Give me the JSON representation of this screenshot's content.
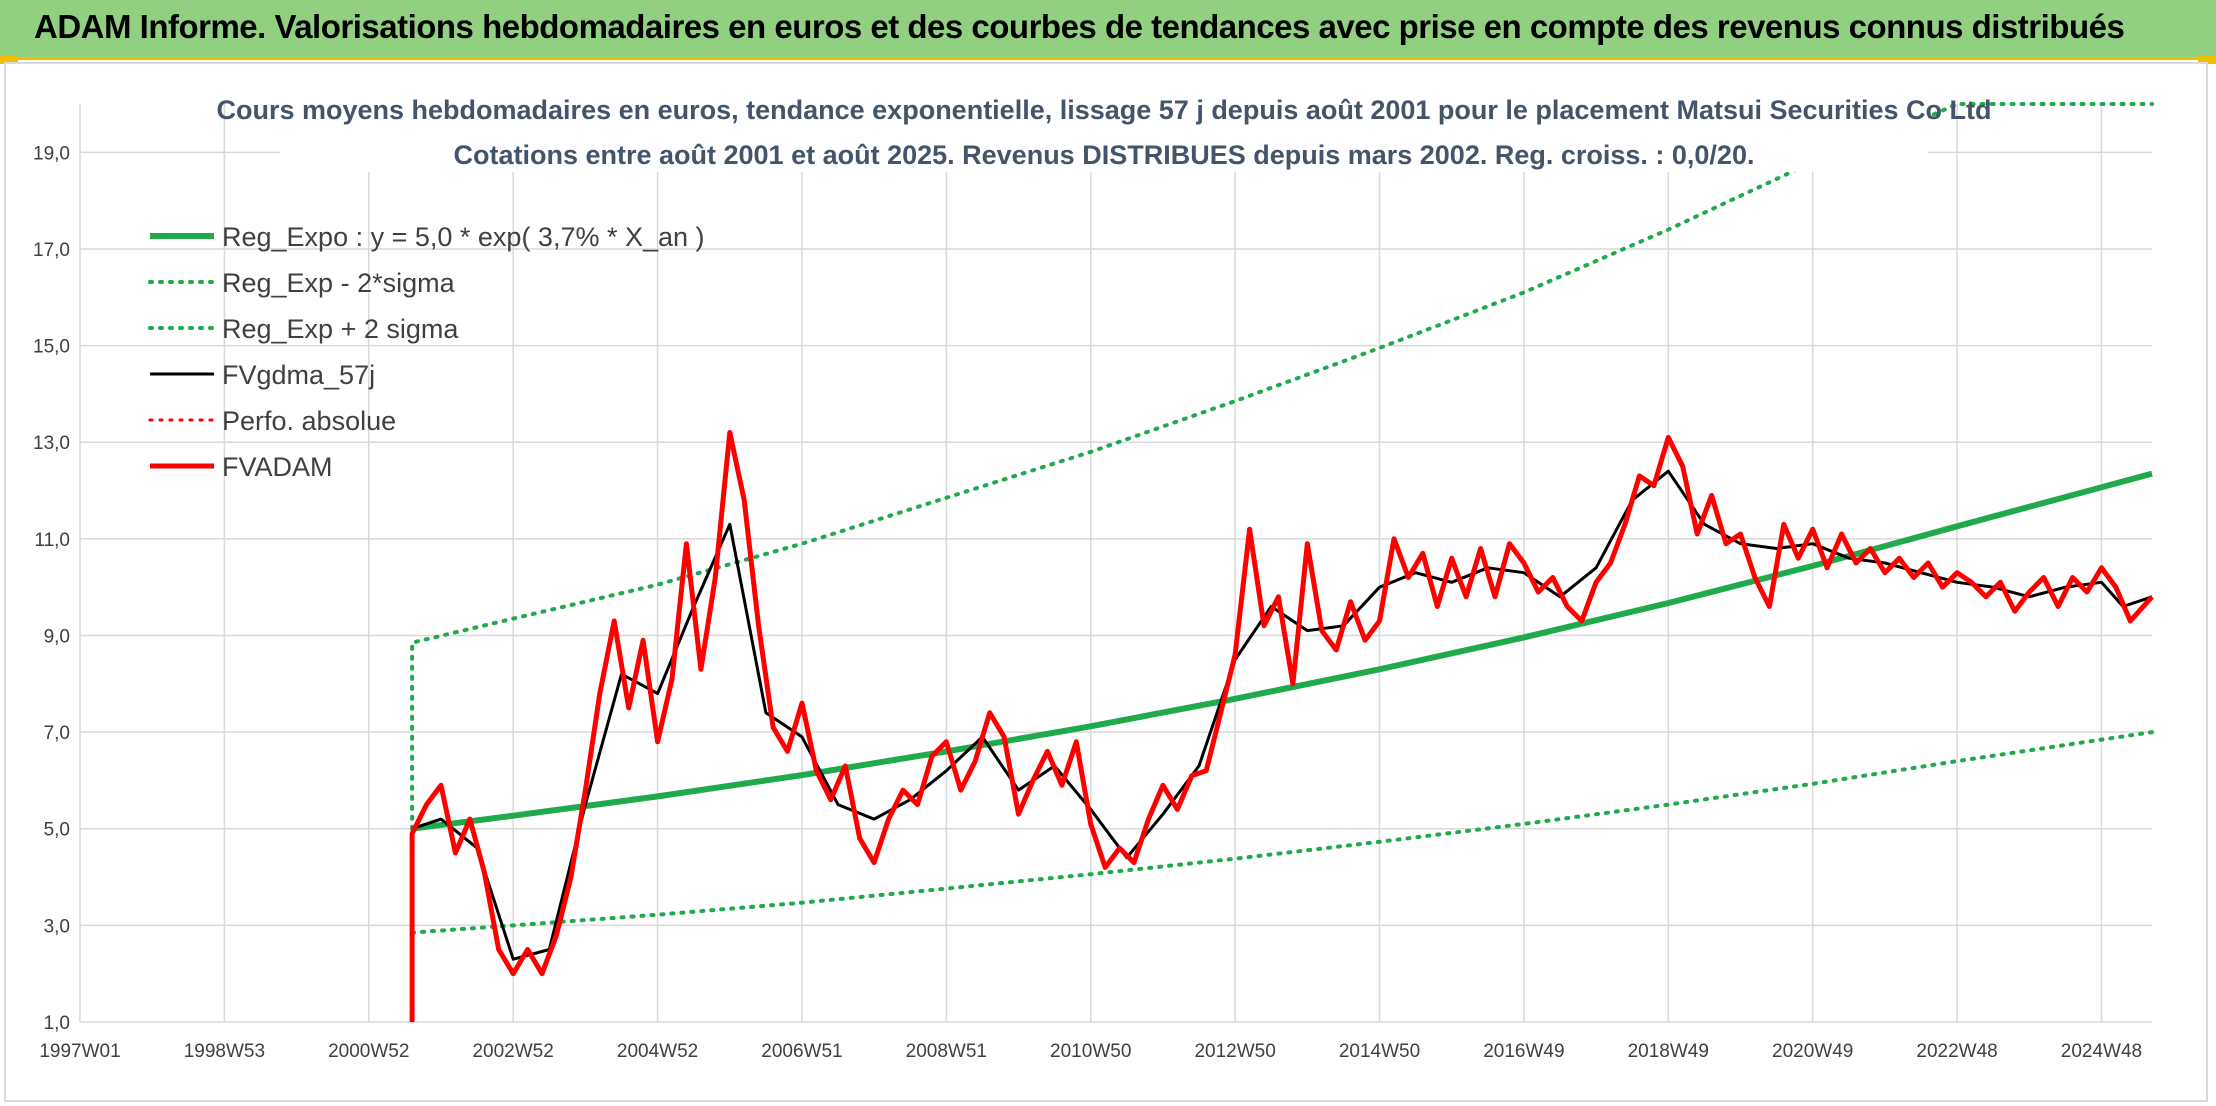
{
  "banner": {
    "title": "ADAM Informe. Valorisations hebdomadaires en euros et des courbes de tendances avec prise en compte des revenus connus distribués"
  },
  "colors": {
    "banner_bg": "#92d081",
    "reg_green": "#1faa4b",
    "red": "#ff0000",
    "black": "#000000",
    "title": "#44546a"
  },
  "chart_data": {
    "type": "line",
    "title": "Cours moyens hebdomadaires en euros, tendance exponentielle, lissage 57 j depuis août 2001 pour le placement Matsui Securities Co Ltd",
    "subtitle": "Cotations entre août 2001 et août 2025. Revenus DISTRIBUES depuis mars 2002. Reg. croiss. : 0,0/20.",
    "xlabel": "",
    "ylabel": "",
    "xlim": [
      1997.0,
      2025.7
    ],
    "ylim": [
      1.0,
      20.0
    ],
    "grid": true,
    "legend_position": "top-left",
    "x_ticks": [
      {
        "label": "1997W01",
        "x": 1997.0
      },
      {
        "label": "1998W53",
        "x": 1999.0
      },
      {
        "label": "2000W52",
        "x": 2001.0
      },
      {
        "label": "2002W52",
        "x": 2003.0
      },
      {
        "label": "2004W52",
        "x": 2005.0
      },
      {
        "label": "2006W51",
        "x": 2007.0
      },
      {
        "label": "2008W51",
        "x": 2009.0
      },
      {
        "label": "2010W50",
        "x": 2011.0
      },
      {
        "label": "2012W50",
        "x": 2013.0
      },
      {
        "label": "2014W50",
        "x": 2015.0
      },
      {
        "label": "2016W49",
        "x": 2017.0
      },
      {
        "label": "2018W49",
        "x": 2019.0
      },
      {
        "label": "2020W49",
        "x": 2021.0
      },
      {
        "label": "2022W48",
        "x": 2023.0
      },
      {
        "label": "2024W48",
        "x": 2025.0
      }
    ],
    "y_ticks": [
      {
        "label": "1,0",
        "y": 1.0
      },
      {
        "label": "3,0",
        "y": 3.0
      },
      {
        "label": "5,0",
        "y": 5.0
      },
      {
        "label": "7,0",
        "y": 7.0
      },
      {
        "label": "9,0",
        "y": 9.0
      },
      {
        "label": "11,0",
        "y": 11.0
      },
      {
        "label": "13,0",
        "y": 13.0
      },
      {
        "label": "15,0",
        "y": 15.0
      },
      {
        "label": "17,0",
        "y": 17.0
      },
      {
        "label": "19,0",
        "y": 19.0
      }
    ],
    "series": [
      {
        "name": "Reg_Expo : y = 5,0 * exp( 3,7% *  X_an )",
        "color": "#1faa4b",
        "style": "solid",
        "width": 6,
        "points": [
          [
            2001.6,
            5.0
          ],
          [
            2003.0,
            5.27
          ],
          [
            2005.0,
            5.67
          ],
          [
            2007.0,
            6.11
          ],
          [
            2009.0,
            6.6
          ],
          [
            2011.0,
            7.12
          ],
          [
            2013.0,
            7.69
          ],
          [
            2015.0,
            8.3
          ],
          [
            2017.0,
            8.96
          ],
          [
            2019.0,
            9.67
          ],
          [
            2021.0,
            10.44
          ],
          [
            2023.0,
            11.26
          ],
          [
            2025.7,
            12.35
          ]
        ]
      },
      {
        "name": "Reg_Exp - 2*sigma",
        "color": "#1faa4b",
        "style": "dotted",
        "width": 4,
        "points": [
          [
            2001.6,
            2.85
          ],
          [
            2003.0,
            3.0
          ],
          [
            2005.0,
            3.22
          ],
          [
            2007.0,
            3.47
          ],
          [
            2009.0,
            3.76
          ],
          [
            2011.0,
            4.06
          ],
          [
            2013.0,
            4.38
          ],
          [
            2015.0,
            4.73
          ],
          [
            2017.0,
            5.1
          ],
          [
            2019.0,
            5.5
          ],
          [
            2021.0,
            5.93
          ],
          [
            2023.0,
            6.4
          ],
          [
            2025.7,
            7.0
          ]
        ]
      },
      {
        "name": "Reg_Exp + 2 sigma",
        "color": "#1faa4b",
        "style": "dotted",
        "width": 4,
        "points": [
          [
            2001.6,
            5.0
          ],
          [
            2001.6,
            8.85
          ],
          [
            2003.0,
            9.35
          ],
          [
            2005.0,
            10.05
          ],
          [
            2007.0,
            10.9
          ],
          [
            2009.0,
            11.85
          ],
          [
            2011.0,
            12.8
          ],
          [
            2013.0,
            13.85
          ],
          [
            2015.0,
            14.95
          ],
          [
            2017.0,
            16.1
          ],
          [
            2019.0,
            17.4
          ],
          [
            2021.0,
            18.8
          ],
          [
            2022.4,
            19.6
          ],
          [
            2023.0,
            20.0
          ],
          [
            2025.7,
            20.0
          ]
        ]
      },
      {
        "name": "FVgdma_57j",
        "color": "#000000",
        "style": "solid",
        "width": 3,
        "points": [
          [
            2001.6,
            5.0
          ],
          [
            2002.0,
            5.2
          ],
          [
            2002.5,
            4.6
          ],
          [
            2003.0,
            2.3
          ],
          [
            2003.5,
            2.5
          ],
          [
            2004.0,
            5.5
          ],
          [
            2004.5,
            8.2
          ],
          [
            2005.0,
            7.8
          ],
          [
            2005.5,
            9.6
          ],
          [
            2006.0,
            11.3
          ],
          [
            2006.5,
            7.4
          ],
          [
            2007.0,
            6.9
          ],
          [
            2007.5,
            5.5
          ],
          [
            2008.0,
            5.2
          ],
          [
            2008.5,
            5.6
          ],
          [
            2009.0,
            6.2
          ],
          [
            2009.5,
            6.9
          ],
          [
            2010.0,
            5.8
          ],
          [
            2010.5,
            6.3
          ],
          [
            2011.0,
            5.4
          ],
          [
            2011.5,
            4.4
          ],
          [
            2012.0,
            5.3
          ],
          [
            2012.5,
            6.3
          ],
          [
            2013.0,
            8.5
          ],
          [
            2013.5,
            9.6
          ],
          [
            2014.0,
            9.1
          ],
          [
            2014.5,
            9.2
          ],
          [
            2015.0,
            10.0
          ],
          [
            2015.5,
            10.3
          ],
          [
            2016.0,
            10.1
          ],
          [
            2016.5,
            10.4
          ],
          [
            2017.0,
            10.3
          ],
          [
            2017.5,
            9.8
          ],
          [
            2018.0,
            10.4
          ],
          [
            2018.5,
            11.8
          ],
          [
            2019.0,
            12.4
          ],
          [
            2019.5,
            11.3
          ],
          [
            2020.0,
            10.9
          ],
          [
            2020.5,
            10.8
          ],
          [
            2021.0,
            10.9
          ],
          [
            2021.5,
            10.6
          ],
          [
            2022.0,
            10.5
          ],
          [
            2022.5,
            10.3
          ],
          [
            2023.0,
            10.1
          ],
          [
            2023.5,
            10.0
          ],
          [
            2024.0,
            9.8
          ],
          [
            2024.5,
            10.0
          ],
          [
            2025.0,
            10.1
          ],
          [
            2025.3,
            9.6
          ],
          [
            2025.7,
            9.8
          ]
        ]
      },
      {
        "name": "Perfo. absolue",
        "color": "#ff0000",
        "style": "dotted",
        "width": 3,
        "points": []
      },
      {
        "name": "FVADAM",
        "color": "#ff0000",
        "style": "solid",
        "width": 5,
        "points": [
          [
            2001.6,
            1.0
          ],
          [
            2001.6,
            4.9
          ],
          [
            2001.8,
            5.5
          ],
          [
            2002.0,
            5.9
          ],
          [
            2002.2,
            4.5
          ],
          [
            2002.4,
            5.2
          ],
          [
            2002.6,
            4.1
          ],
          [
            2002.8,
            2.5
          ],
          [
            2003.0,
            2.0
          ],
          [
            2003.2,
            2.5
          ],
          [
            2003.4,
            2.0
          ],
          [
            2003.6,
            2.8
          ],
          [
            2003.8,
            4.0
          ],
          [
            2004.0,
            5.8
          ],
          [
            2004.2,
            7.8
          ],
          [
            2004.4,
            9.3
          ],
          [
            2004.6,
            7.5
          ],
          [
            2004.8,
            8.9
          ],
          [
            2005.0,
            6.8
          ],
          [
            2005.2,
            8.1
          ],
          [
            2005.4,
            10.9
          ],
          [
            2005.6,
            8.3
          ],
          [
            2005.8,
            10.2
          ],
          [
            2006.0,
            13.2
          ],
          [
            2006.2,
            11.8
          ],
          [
            2006.4,
            9.2
          ],
          [
            2006.6,
            7.1
          ],
          [
            2006.8,
            6.6
          ],
          [
            2007.0,
            7.6
          ],
          [
            2007.2,
            6.2
          ],
          [
            2007.4,
            5.6
          ],
          [
            2007.6,
            6.3
          ],
          [
            2007.8,
            4.8
          ],
          [
            2008.0,
            4.3
          ],
          [
            2008.2,
            5.2
          ],
          [
            2008.4,
            5.8
          ],
          [
            2008.6,
            5.5
          ],
          [
            2008.8,
            6.5
          ],
          [
            2009.0,
            6.8
          ],
          [
            2009.2,
            5.8
          ],
          [
            2009.4,
            6.4
          ],
          [
            2009.6,
            7.4
          ],
          [
            2009.8,
            6.9
          ],
          [
            2010.0,
            5.3
          ],
          [
            2010.2,
            6.0
          ],
          [
            2010.4,
            6.6
          ],
          [
            2010.6,
            5.9
          ],
          [
            2010.8,
            6.8
          ],
          [
            2011.0,
            5.1
          ],
          [
            2011.2,
            4.2
          ],
          [
            2011.4,
            4.6
          ],
          [
            2011.6,
            4.3
          ],
          [
            2011.8,
            5.2
          ],
          [
            2012.0,
            5.9
          ],
          [
            2012.2,
            5.4
          ],
          [
            2012.4,
            6.1
          ],
          [
            2012.6,
            6.2
          ],
          [
            2012.8,
            7.4
          ],
          [
            2013.0,
            8.6
          ],
          [
            2013.2,
            11.2
          ],
          [
            2013.4,
            9.2
          ],
          [
            2013.6,
            9.8
          ],
          [
            2013.8,
            8.0
          ],
          [
            2014.0,
            10.9
          ],
          [
            2014.2,
            9.1
          ],
          [
            2014.4,
            8.7
          ],
          [
            2014.6,
            9.7
          ],
          [
            2014.8,
            8.9
          ],
          [
            2015.0,
            9.3
          ],
          [
            2015.2,
            11.0
          ],
          [
            2015.4,
            10.2
          ],
          [
            2015.6,
            10.7
          ],
          [
            2015.8,
            9.6
          ],
          [
            2016.0,
            10.6
          ],
          [
            2016.2,
            9.8
          ],
          [
            2016.4,
            10.8
          ],
          [
            2016.6,
            9.8
          ],
          [
            2016.8,
            10.9
          ],
          [
            2017.0,
            10.5
          ],
          [
            2017.2,
            9.9
          ],
          [
            2017.4,
            10.2
          ],
          [
            2017.6,
            9.6
          ],
          [
            2017.8,
            9.3
          ],
          [
            2018.0,
            10.1
          ],
          [
            2018.2,
            10.5
          ],
          [
            2018.4,
            11.3
          ],
          [
            2018.6,
            12.3
          ],
          [
            2018.8,
            12.1
          ],
          [
            2019.0,
            13.1
          ],
          [
            2019.2,
            12.5
          ],
          [
            2019.4,
            11.1
          ],
          [
            2019.6,
            11.9
          ],
          [
            2019.8,
            10.9
          ],
          [
            2020.0,
            11.1
          ],
          [
            2020.2,
            10.2
          ],
          [
            2020.4,
            9.6
          ],
          [
            2020.6,
            11.3
          ],
          [
            2020.8,
            10.6
          ],
          [
            2021.0,
            11.2
          ],
          [
            2021.2,
            10.4
          ],
          [
            2021.4,
            11.1
          ],
          [
            2021.6,
            10.5
          ],
          [
            2021.8,
            10.8
          ],
          [
            2022.0,
            10.3
          ],
          [
            2022.2,
            10.6
          ],
          [
            2022.4,
            10.2
          ],
          [
            2022.6,
            10.5
          ],
          [
            2022.8,
            10.0
          ],
          [
            2023.0,
            10.3
          ],
          [
            2023.2,
            10.1
          ],
          [
            2023.4,
            9.8
          ],
          [
            2023.6,
            10.1
          ],
          [
            2023.8,
            9.5
          ],
          [
            2024.0,
            9.9
          ],
          [
            2024.2,
            10.2
          ],
          [
            2024.4,
            9.6
          ],
          [
            2024.6,
            10.2
          ],
          [
            2024.8,
            9.9
          ],
          [
            2025.0,
            10.4
          ],
          [
            2025.2,
            10.0
          ],
          [
            2025.4,
            9.3
          ],
          [
            2025.7,
            9.8
          ]
        ]
      }
    ]
  }
}
